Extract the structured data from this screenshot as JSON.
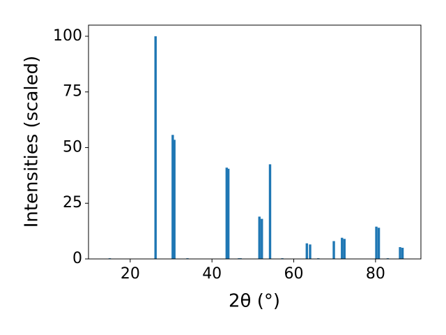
{
  "chart_data": {
    "type": "bar",
    "x_label": "2θ (°)",
    "y_label": "Intensities (scaled)",
    "x": [
      15.0,
      26.2,
      30.4,
      30.8,
      34.0,
      43.6,
      44.0,
      46.6,
      47.0,
      51.6,
      52.2,
      54.2,
      57.2,
      63.2,
      64.0,
      66.0,
      69.8,
      71.8,
      72.4,
      80.2,
      80.8,
      83.0,
      86.0,
      86.6
    ],
    "values": [
      0.3,
      100,
      55.7,
      53.5,
      0.3,
      41,
      40.5,
      0.3,
      0.3,
      19,
      18,
      42.5,
      0.3,
      7,
      6.5,
      0.3,
      8,
      9.5,
      9,
      14.5,
      14,
      0.3,
      5.3,
      5
    ],
    "color": "#1f77b4",
    "xlim": [
      9.8,
      91.1
    ],
    "xticks": [
      20,
      40,
      60,
      80
    ],
    "ylim": [
      0,
      105
    ],
    "yticks": [
      0,
      25,
      50,
      75,
      100
    ],
    "grid": false
  }
}
